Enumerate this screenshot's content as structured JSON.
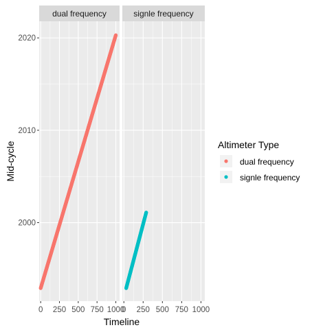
{
  "chart_data": {
    "type": "scatter",
    "facet_by": "Altimeter Type",
    "panels": [
      {
        "key": "dual",
        "strip_label": "dual frequency"
      },
      {
        "key": "single",
        "strip_label": "signle frequency"
      }
    ],
    "xlabel": "Timeline",
    "ylabel": "Mid-cycle",
    "xlim": [
      -20,
      1050
    ],
    "ylim": [
      1991.5,
      2021.8
    ],
    "x_ticks": [
      0,
      250,
      500,
      750,
      1000
    ],
    "x_tick_labels": [
      "0",
      "250",
      "500",
      "750",
      "1000"
    ],
    "y_ticks": [
      2000,
      2010,
      2020
    ],
    "y_tick_labels": [
      "2000",
      "2010",
      "2020"
    ],
    "grid": true,
    "legend": {
      "title": "Altimeter Type",
      "position": "right",
      "entries": [
        {
          "label": "dual frequency",
          "color": "#F8766D"
        },
        {
          "label": "signle frequency",
          "color": "#00BFC4"
        }
      ]
    },
    "series": [
      {
        "name": "dual frequency",
        "panel": "dual",
        "color": "#F8766D",
        "x_start": 0,
        "x_end": 1000,
        "y_start": 1992.9,
        "y_end": 2020.3,
        "n_points": 1000
      },
      {
        "name": "signle frequency",
        "panel": "single",
        "color": "#00BFC4",
        "x_start": 30,
        "x_end": 290,
        "y_start": 1992.9,
        "y_end": 2001.1,
        "n_points": 260
      }
    ]
  }
}
